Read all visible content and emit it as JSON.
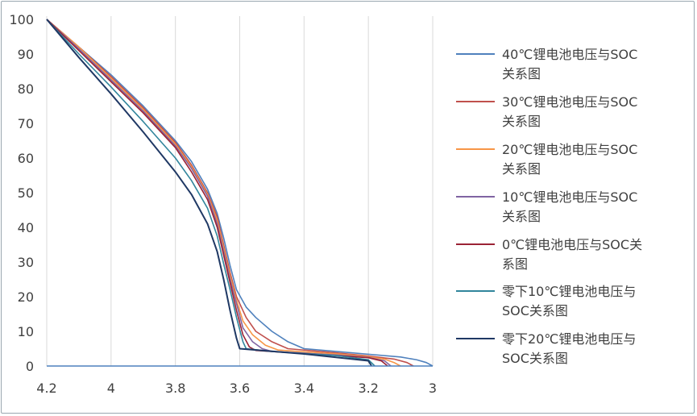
{
  "chart_data": {
    "type": "line",
    "title": "",
    "xlabel": "",
    "ylabel": "",
    "xlim": [
      4.2,
      3.0
    ],
    "ylim": [
      0,
      100
    ],
    "x_reversed": true,
    "x_ticks": [
      "4.2",
      "4",
      "3.8",
      "3.6",
      "3.4",
      "3.2",
      "3"
    ],
    "y_ticks": [
      "0",
      "10",
      "20",
      "30",
      "40",
      "50",
      "60",
      "70",
      "80",
      "90",
      "100"
    ],
    "grid": "vertical",
    "legend_position": "right",
    "series": [
      {
        "name": "40℃锂电池电压与SOC关系图",
        "color": "#4f81bd",
        "points": [
          [
            4.2,
            100
          ],
          [
            4.1,
            92
          ],
          [
            4.0,
            84
          ],
          [
            3.9,
            75
          ],
          [
            3.8,
            65
          ],
          [
            3.75,
            59
          ],
          [
            3.7,
            51
          ],
          [
            3.67,
            44
          ],
          [
            3.65,
            37
          ],
          [
            3.63,
            29
          ],
          [
            3.61,
            22
          ],
          [
            3.58,
            17
          ],
          [
            3.55,
            14
          ],
          [
            3.5,
            10
          ],
          [
            3.45,
            7
          ],
          [
            3.4,
            5
          ],
          [
            3.3,
            4.2
          ],
          [
            3.2,
            3.4
          ],
          [
            3.1,
            2.6
          ],
          [
            3.05,
            1.8
          ],
          [
            3.02,
            1
          ],
          [
            3.0,
            0
          ]
        ]
      },
      {
        "name": "30℃锂电池电压与SOC关系图",
        "color": "#c0504d",
        "points": [
          [
            4.2,
            100
          ],
          [
            4.1,
            92
          ],
          [
            4.0,
            83.5
          ],
          [
            3.9,
            74.5
          ],
          [
            3.8,
            64.5
          ],
          [
            3.75,
            58
          ],
          [
            3.7,
            50
          ],
          [
            3.67,
            43
          ],
          [
            3.65,
            35
          ],
          [
            3.63,
            27
          ],
          [
            3.61,
            20
          ],
          [
            3.58,
            14
          ],
          [
            3.55,
            10
          ],
          [
            3.5,
            7
          ],
          [
            3.45,
            5
          ],
          [
            3.3,
            3.8
          ],
          [
            3.2,
            2.9
          ],
          [
            3.12,
            2
          ],
          [
            3.08,
            1
          ],
          [
            3.06,
            0
          ]
        ]
      },
      {
        "name": "20℃锂电池电压与SOC关系图",
        "color": "#f79646",
        "points": [
          [
            4.2,
            100
          ],
          [
            4.1,
            92
          ],
          [
            4.0,
            83
          ],
          [
            3.9,
            74
          ],
          [
            3.8,
            64
          ],
          [
            3.75,
            57.5
          ],
          [
            3.7,
            49.5
          ],
          [
            3.67,
            42
          ],
          [
            3.65,
            34
          ],
          [
            3.63,
            26
          ],
          [
            3.61,
            19
          ],
          [
            3.59,
            13
          ],
          [
            3.56,
            9
          ],
          [
            3.52,
            6
          ],
          [
            3.48,
            4.6
          ],
          [
            3.3,
            3.5
          ],
          [
            3.2,
            2.7
          ],
          [
            3.15,
            2
          ],
          [
            3.12,
            1
          ],
          [
            3.1,
            0
          ]
        ]
      },
      {
        "name": "10℃锂电池电压与SOC关系图",
        "color": "#8064a2",
        "points": [
          [
            4.2,
            100
          ],
          [
            4.1,
            91.5
          ],
          [
            4.0,
            82.5
          ],
          [
            3.9,
            73.5
          ],
          [
            3.8,
            63.5
          ],
          [
            3.75,
            57
          ],
          [
            3.7,
            49
          ],
          [
            3.67,
            41
          ],
          [
            3.65,
            33
          ],
          [
            3.63,
            25
          ],
          [
            3.61,
            18
          ],
          [
            3.59,
            11
          ],
          [
            3.56,
            7
          ],
          [
            3.53,
            5
          ],
          [
            3.5,
            4.2
          ],
          [
            3.3,
            3.2
          ],
          [
            3.2,
            2.5
          ],
          [
            3.15,
            1.5
          ],
          [
            3.13,
            0
          ]
        ]
      },
      {
        "name": "0℃锂电池电压与SOC关系图",
        "color": "#9b2335",
        "points": [
          [
            4.2,
            100
          ],
          [
            4.1,
            91
          ],
          [
            4.0,
            82
          ],
          [
            3.9,
            73
          ],
          [
            3.8,
            63
          ],
          [
            3.75,
            56
          ],
          [
            3.7,
            48
          ],
          [
            3.67,
            40
          ],
          [
            3.65,
            32
          ],
          [
            3.63,
            24
          ],
          [
            3.61,
            16
          ],
          [
            3.59,
            9
          ],
          [
            3.57,
            5.5
          ],
          [
            3.55,
            4.5
          ],
          [
            3.4,
            3.6
          ],
          [
            3.2,
            2.4
          ],
          [
            3.16,
            1.5
          ],
          [
            3.14,
            0
          ]
        ]
      },
      {
        "name": "零下10℃锂电池电压与SOC关系图",
        "color": "#31859c",
        "points": [
          [
            4.2,
            100
          ],
          [
            4.1,
            90
          ],
          [
            4.0,
            80.5
          ],
          [
            3.9,
            70.5
          ],
          [
            3.8,
            60
          ],
          [
            3.75,
            53.5
          ],
          [
            3.7,
            45.5
          ],
          [
            3.67,
            37.5
          ],
          [
            3.65,
            29.5
          ],
          [
            3.63,
            22
          ],
          [
            3.61,
            14
          ],
          [
            3.59,
            7
          ],
          [
            3.58,
            5
          ],
          [
            3.5,
            4.2
          ],
          [
            3.3,
            3
          ],
          [
            3.2,
            1.8
          ],
          [
            3.18,
            0
          ]
        ]
      },
      {
        "name": "零下20℃锂电池电压与SOC关系图",
        "color": "#1f3864",
        "points": [
          [
            4.2,
            100
          ],
          [
            4.1,
            89
          ],
          [
            4.0,
            78.5
          ],
          [
            3.9,
            67.5
          ],
          [
            3.8,
            56
          ],
          [
            3.75,
            49.5
          ],
          [
            3.7,
            41
          ],
          [
            3.67,
            33
          ],
          [
            3.65,
            25
          ],
          [
            3.63,
            16
          ],
          [
            3.61,
            8
          ],
          [
            3.6,
            5
          ],
          [
            3.4,
            3.5
          ],
          [
            3.3,
            2.5
          ],
          [
            3.2,
            1.5
          ],
          [
            3.19,
            0
          ]
        ]
      },
      {
        "name": "",
        "color": "#4f81bd",
        "points": [
          [
            4.2,
            0
          ],
          [
            3.0,
            0
          ]
        ]
      }
    ]
  }
}
